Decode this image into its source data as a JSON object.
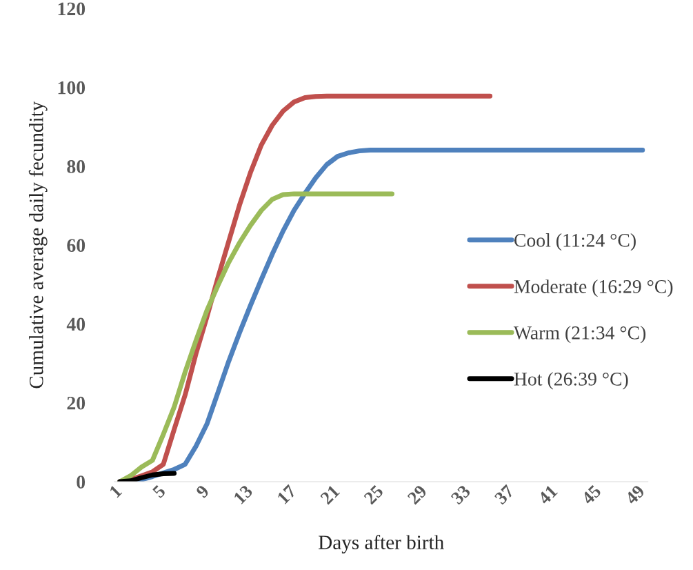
{
  "chart_data": {
    "type": "line",
    "xlabel": "Days after birth",
    "ylabel": "Cumulative average daily fecundity",
    "categories": [
      "1",
      null,
      null,
      null,
      "5",
      null,
      null,
      null,
      "9",
      null,
      null,
      null,
      "13",
      null,
      null,
      null,
      "17",
      null,
      null,
      null,
      "21",
      null,
      null,
      null,
      "25",
      null,
      null,
      null,
      "29",
      null,
      null,
      null,
      "33",
      null,
      null,
      null,
      "37",
      null,
      null,
      null,
      "41",
      null,
      null,
      null,
      "45",
      null,
      null,
      null,
      "49"
    ],
    "series": [
      {
        "name": "Cool (11:24 °C)",
        "color": "#4f81bd",
        "values": [
          0,
          0,
          0.5,
          1.3,
          2.2,
          3.1,
          4.4,
          9.0,
          14.6,
          22.5,
          30.5,
          37.8,
          44.7,
          51.3,
          57.7,
          63.6,
          68.8,
          73.1,
          77.1,
          80.4,
          82.5,
          83.4,
          83.9,
          84.1,
          84.1,
          84.1,
          84.1,
          84.1,
          84.1,
          84.1,
          84.1,
          84.1,
          84.1,
          84.1,
          84.1,
          84.1,
          84.1,
          84.1,
          84.1,
          84.1,
          84.1,
          84.1,
          84.1,
          84.1,
          84.1,
          84.1,
          84.1,
          84.1,
          84.1
        ]
      },
      {
        "name": "Moderate (16:29 °C)",
        "color": "#c0504d",
        "values": [
          0,
          0.5,
          1.5,
          2.5,
          4.4,
          13.3,
          22.0,
          32.5,
          41.8,
          51.6,
          60.9,
          70.2,
          78.4,
          85.4,
          90.4,
          94.0,
          96.3,
          97.4,
          97.7,
          97.8,
          97.8,
          97.8,
          97.8,
          97.8,
          97.8,
          97.8,
          97.8,
          97.8,
          97.8,
          97.8,
          97.8,
          97.8,
          97.8,
          97.8,
          97.8,
          null,
          null,
          null,
          null,
          null,
          null,
          null,
          null,
          null,
          null,
          null,
          null,
          null,
          null
        ]
      },
      {
        "name": "Warm (21:34 °C)",
        "color": "#9bbb59",
        "values": [
          0,
          1.5,
          3.7,
          5.4,
          12.0,
          19.0,
          27.8,
          35.8,
          43.4,
          49.7,
          55.6,
          60.6,
          65.0,
          68.8,
          71.6,
          72.8,
          73.0,
          73.0,
          73.0,
          73.0,
          73.0,
          73.0,
          73.0,
          73.0,
          73.0,
          73.0,
          null,
          null,
          null,
          null,
          null,
          null,
          null,
          null,
          null,
          null,
          null,
          null,
          null,
          null,
          null,
          null,
          null,
          null,
          null,
          null,
          null,
          null,
          null
        ]
      },
      {
        "name": "Hot (26:39 °C)",
        "color": "#000000",
        "values": [
          0,
          0.2,
          1.0,
          1.7,
          2.0,
          2.1,
          null,
          null,
          null,
          null,
          null,
          null,
          null,
          null,
          null,
          null,
          null,
          null,
          null,
          null,
          null,
          null,
          null,
          null,
          null,
          null,
          null,
          null,
          null,
          null,
          null,
          null,
          null,
          null,
          null,
          null,
          null,
          null,
          null,
          null,
          null,
          null,
          null,
          null,
          null,
          null,
          null,
          null,
          null
        ]
      }
    ],
    "ylim": [
      0,
      120
    ],
    "yticks": [
      0,
      20,
      40,
      60,
      80,
      100,
      120
    ],
    "grid": false,
    "legend": "right",
    "marker": "none",
    "line_style": "solid"
  }
}
